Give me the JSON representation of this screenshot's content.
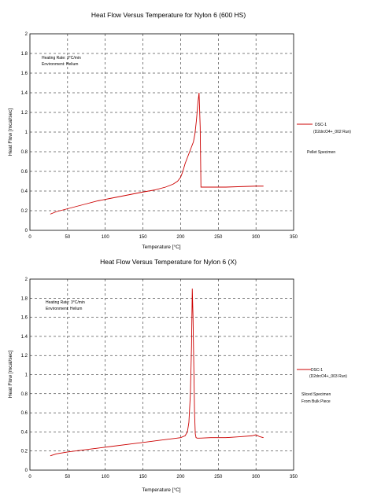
{
  "chart_data": [
    {
      "type": "line",
      "title": "Heat Flow Versus Temperature for Nylon 6 (600 HS)",
      "xlabel": "Temperature [°C]",
      "ylabel": "Heat Flow [mcal/sec]",
      "xlim": [
        0,
        350
      ],
      "ylim": [
        0,
        2
      ],
      "xticks": [
        "0",
        "50",
        "100",
        "150",
        "200",
        "250",
        "300",
        "350"
      ],
      "yticks": [
        "0",
        "0.2",
        "0.4",
        "0.6",
        "0.8",
        "1",
        "1.2",
        "1.4",
        "1.6",
        "1.8",
        "2"
      ],
      "grid": true,
      "legend_placement": "right",
      "conditions": [
        "Heating Rate:  3°C/min",
        "Environment:  Helium"
      ],
      "side_note": [
        "Pellet Specimen"
      ],
      "series": [
        {
          "name": "DSC-1",
          "name_detail": "(D2drcO4+_002 Run)",
          "color": "#cc0000",
          "x": [
            27,
            35,
            50,
            70,
            90,
            110,
            130,
            150,
            165,
            180,
            190,
            196,
            200,
            203,
            206,
            210,
            214,
            217,
            219,
            221,
            223,
            224.5,
            226,
            227,
            240,
            260,
            280,
            300,
            310
          ],
          "y": [
            0.165,
            0.19,
            0.22,
            0.26,
            0.3,
            0.33,
            0.36,
            0.39,
            0.41,
            0.44,
            0.47,
            0.5,
            0.54,
            0.6,
            0.68,
            0.76,
            0.84,
            0.9,
            0.98,
            1.12,
            1.3,
            1.4,
            1.05,
            0.44,
            0.44,
            0.44,
            0.445,
            0.45,
            0.45
          ]
        }
      ]
    },
    {
      "type": "line",
      "title": "Heat Flow Versus Temperature for Nylon 6 (X)",
      "xlabel": "Temperature [°C]",
      "ylabel": "Heat Flow [mcal/sec]",
      "xlim": [
        0,
        350
      ],
      "ylim": [
        0,
        2
      ],
      "xticks": [
        "0",
        "50",
        "100",
        "150",
        "200",
        "250",
        "300",
        "350"
      ],
      "yticks": [
        "0",
        "0.2",
        "0.4",
        "0.6",
        "0.8",
        "1",
        "1.2",
        "1.4",
        "1.6",
        "1.8",
        "2"
      ],
      "grid": true,
      "legend_placement": "right",
      "conditions": [
        "Heating Rate:  3°C/min",
        "Environment:  Helium"
      ],
      "side_note": [
        "Sliced Specimen",
        "From Bulk Piece"
      ],
      "series": [
        {
          "name": "DSC-1",
          "name_detail": "(D2drcO4+_003 Run)",
          "color": "#cc0000",
          "x": [
            27,
            35,
            50,
            70,
            90,
            110,
            130,
            150,
            170,
            190,
            200,
            206,
            209,
            211,
            213,
            214.5,
            215.5,
            216.5,
            217.5,
            218.5,
            219.5,
            220.5,
            222,
            225,
            240,
            260,
            280,
            295,
            300,
            305,
            310
          ],
          "y": [
            0.15,
            0.17,
            0.19,
            0.21,
            0.23,
            0.25,
            0.27,
            0.29,
            0.31,
            0.33,
            0.34,
            0.36,
            0.4,
            0.5,
            0.8,
            1.3,
            1.9,
            1.6,
            1.1,
            0.6,
            0.38,
            0.34,
            0.335,
            0.335,
            0.34,
            0.34,
            0.35,
            0.36,
            0.37,
            0.35,
            0.34
          ]
        }
      ]
    }
  ]
}
